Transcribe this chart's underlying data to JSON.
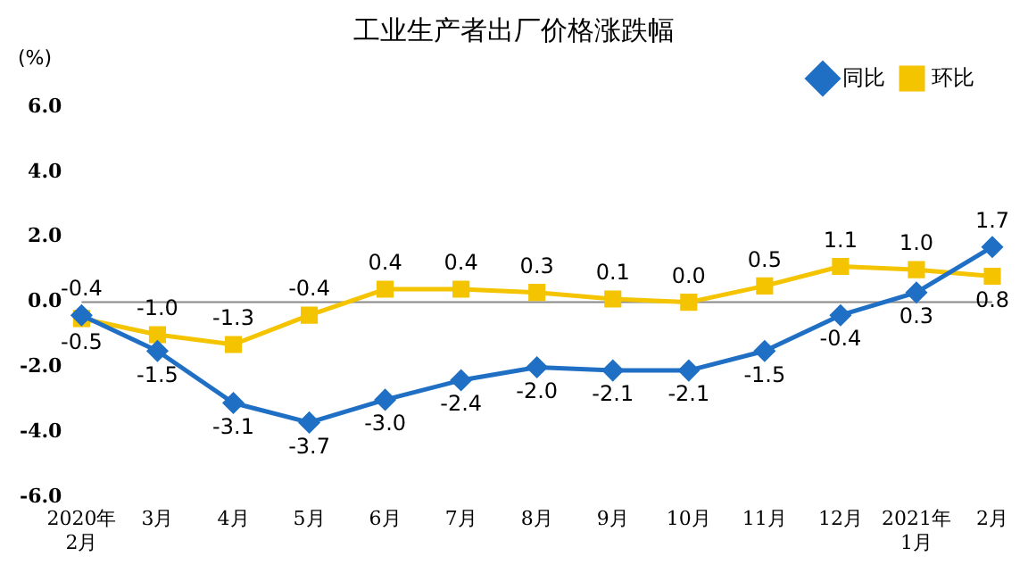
{
  "chart_data": {
    "type": "line",
    "title": "工业生产者出厂价格涨跌幅",
    "ylabel": "(%)",
    "categories": [
      "2020年\n2月",
      "3月",
      "4月",
      "5月",
      "6月",
      "7月",
      "8月",
      "9月",
      "10月",
      "11月",
      "12月",
      "2021年\n1月",
      "2月"
    ],
    "series": [
      {
        "name": "同比",
        "color": "#1f6fc5",
        "marker": "diamond",
        "values": [
          -0.4,
          -1.5,
          -3.1,
          -3.7,
          -3.0,
          -2.4,
          -2.0,
          -2.1,
          -2.1,
          -1.5,
          -0.4,
          0.3,
          1.7
        ],
        "value_labels": [
          "-0.4",
          "-1.5",
          "-3.1",
          "-3.7",
          "-3.0",
          "-2.4",
          "-2.0",
          "-2.1",
          "-2.1",
          "-1.5",
          "-0.4",
          "0.3",
          "1.7"
        ]
      },
      {
        "name": "环比",
        "color": "#f5c400",
        "marker": "square",
        "values": [
          -0.5,
          -1.0,
          -1.3,
          -0.4,
          0.4,
          0.4,
          0.3,
          0.1,
          0.0,
          0.5,
          1.1,
          1.0,
          0.8
        ],
        "value_labels": [
          "-0.5",
          "-1.0",
          "-1.3",
          "-0.4",
          "0.4",
          "0.4",
          "0.3",
          "0.1",
          "0.0",
          "0.5",
          "1.1",
          "1.0",
          "0.8"
        ]
      }
    ],
    "ylim": [
      -6,
      6
    ],
    "yticks": [
      {
        "value": -6,
        "label": "-6.0"
      },
      {
        "value": -4,
        "label": "-4.0"
      },
      {
        "value": -2,
        "label": "-2.0"
      },
      {
        "value": 0,
        "label": "0.0"
      },
      {
        "value": 2,
        "label": "2.0"
      },
      {
        "value": 4,
        "label": "4.0"
      },
      {
        "value": 6,
        "label": "6.0"
      }
    ],
    "ref_lines": [
      {
        "axis": "y",
        "value": 0,
        "color": "#888888"
      }
    ],
    "grid": false,
    "legend": "top right",
    "line_style": "solid"
  }
}
